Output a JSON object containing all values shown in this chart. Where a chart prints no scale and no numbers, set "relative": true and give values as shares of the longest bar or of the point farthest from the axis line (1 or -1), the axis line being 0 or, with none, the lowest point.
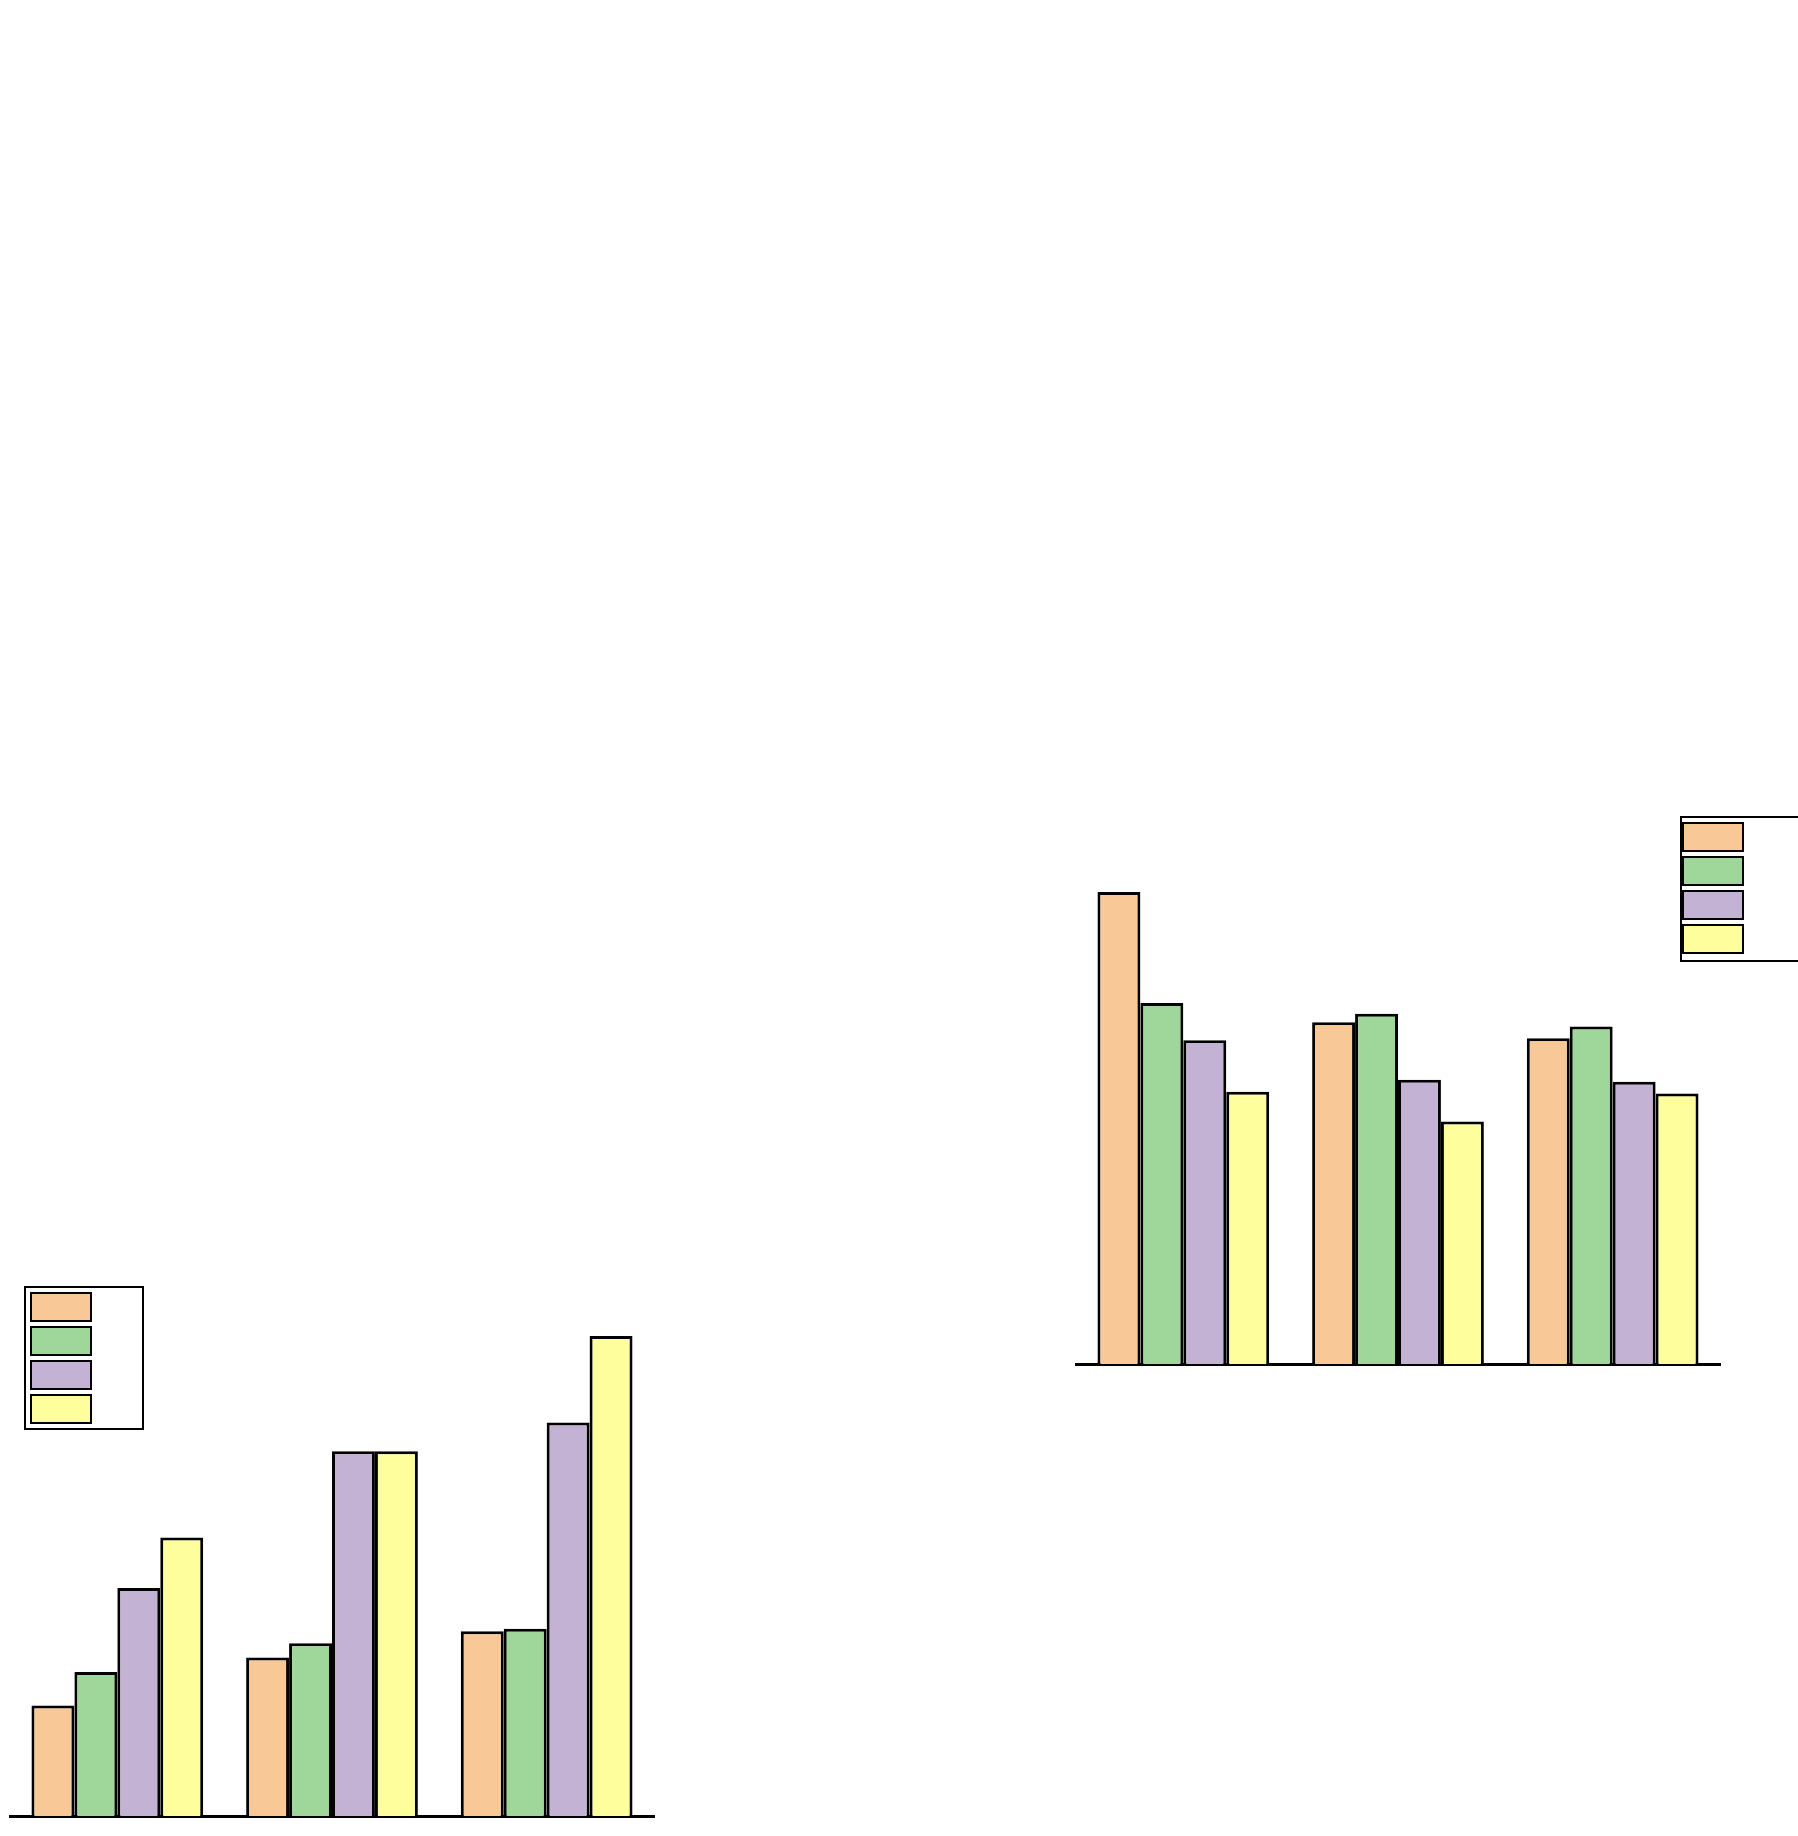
{
  "chart_data": [
    {
      "type": "bar",
      "relative": true,
      "categories": [
        null,
        null,
        null
      ],
      "tick_labels": false,
      "series": [
        {
          "color": "#f9c897",
          "values": [
            0.23,
            0.33,
            0.385
          ]
        },
        {
          "color": "#9fd79b",
          "values": [
            0.3,
            0.36,
            0.39
          ]
        },
        {
          "color": "#c4b2d5",
          "values": [
            0.475,
            0.76,
            0.82
          ]
        },
        {
          "color": "#fffe9c",
          "values": [
            0.58,
            0.76,
            1
          ]
        }
      ]
    },
    {
      "type": "bar",
      "relative": true,
      "categories": [
        null,
        null,
        null
      ],
      "tick_labels": false,
      "series": [
        {
          "color": "#f9c897",
          "values": [
            1,
            0.724,
            0.69
          ]
        },
        {
          "color": "#9fd79b",
          "values": [
            0.765,
            0.742,
            0.715
          ]
        },
        {
          "color": "#c4b2d5",
          "values": [
            0.686,
            0.602,
            0.598
          ]
        },
        {
          "color": "#fffe9c",
          "values": [
            0.577,
            0.514,
            0.573
          ]
        }
      ]
    }
  ]
}
